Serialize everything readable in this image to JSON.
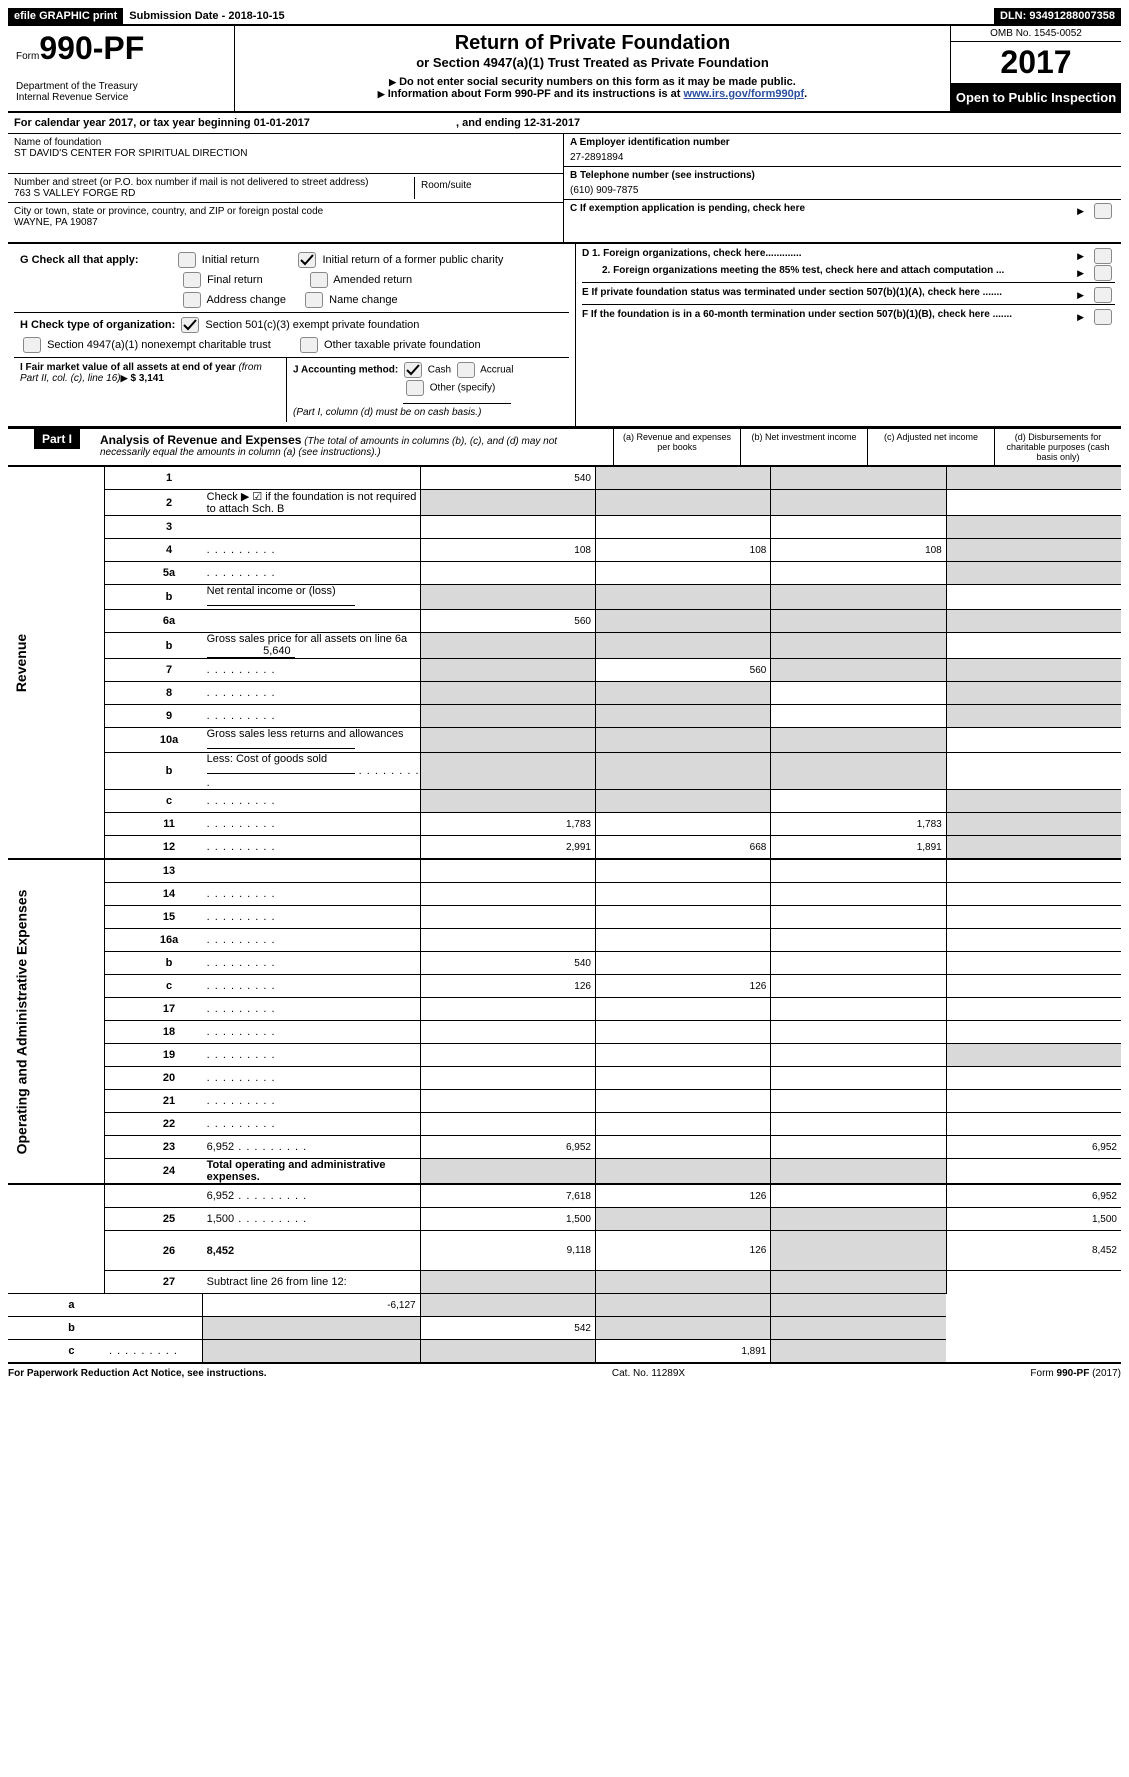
{
  "topbar": {
    "efile": "efile GRAPHIC print",
    "subdate_label": "Submission Date - ",
    "subdate": "2018-10-15",
    "dln_label": "DLN: ",
    "dln": "93491288007358"
  },
  "header": {
    "form_label": "Form",
    "form_number": "990-PF",
    "dept1": "Department of the Treasury",
    "dept2": "Internal Revenue Service",
    "title": "Return of Private Foundation",
    "subtitle": "or Section 4947(a)(1) Trust Treated as Private Foundation",
    "note1": "Do not enter social security numbers on this form as it may be made public.",
    "note2_pre": "Information about Form 990-PF and its instructions is at ",
    "note2_link": "www.irs.gov/form990pf",
    "omb": "OMB No. 1545-0052",
    "year": "2017",
    "openpub": "Open to Public Inspection"
  },
  "calendar": {
    "text": "For calendar year 2017, or tax year beginning 01-01-2017",
    "ending": ", and ending 12-31-2017"
  },
  "info": {
    "name_label": "Name of foundation",
    "name": "ST DAVID'S CENTER FOR SPIRITUAL DIRECTION",
    "addr_label": "Number and street (or P.O. box number if mail is not delivered to street address)",
    "addr": "763 S VALLEY FORGE RD",
    "room_label": "Room/suite",
    "city_label": "City or town, state or province, country, and ZIP or foreign postal code",
    "city": "WAYNE, PA  19087",
    "a_label": "A Employer identification number",
    "a_val": "27-2891894",
    "b_label": "B Telephone number (see instructions)",
    "b_val": "(610) 909-7875",
    "c_label": "C  If exemption application is pending, check here",
    "d1": "D 1. Foreign organizations, check here.............",
    "d2": "2. Foreign organizations meeting the 85% test, check here and attach computation ...",
    "e": "E   If private foundation status was terminated under section 507(b)(1)(A), check here .......",
    "f": "F   If the foundation is in a 60-month termination under section 507(b)(1)(B), check here ......."
  },
  "g": {
    "label": "G Check all that apply:",
    "opts": [
      "Initial return",
      "Initial return of a former public charity",
      "Final return",
      "Amended return",
      "Address change",
      "Name change"
    ]
  },
  "h": {
    "label": "H Check type of organization:",
    "opt1": "Section 501(c)(3) exempt private foundation",
    "opt2": "Section 4947(a)(1) nonexempt charitable trust",
    "opt3": "Other taxable private foundation"
  },
  "i": {
    "label": "I Fair market value of all assets at end of year ",
    "sub": "(from Part II, col. (c), line 16)",
    "val": "$  3,141"
  },
  "j": {
    "label": "J Accounting method:",
    "opts": [
      "Cash",
      "Accrual",
      "Other (specify)"
    ],
    "note": "(Part I, column (d) must be on cash basis.)"
  },
  "part1": {
    "label": "Part I",
    "title": "Analysis of Revenue and Expenses",
    "sub": "(The total of amounts in columns (b), (c), and (d) may not necessarily equal the amounts in column (a) (see instructions).)",
    "cols": {
      "a": "(a)     Revenue and expenses per books",
      "b": "(b)     Net investment income",
      "c": "(c)     Adjusted net income",
      "d": "(d)     Disbursements for charitable purposes (cash basis only)"
    },
    "side_revenue": "Revenue",
    "side_expenses": "Operating and Administrative Expenses"
  },
  "rows": [
    {
      "n": "1",
      "d": "",
      "a": "540",
      "b": "",
      "c": "",
      "shade_b": true,
      "shade_c": true,
      "shade_d": true
    },
    {
      "n": "2",
      "d": "Check ▶ ☑ if the foundation is not required to attach Sch. B",
      "no_vals": true,
      "shade_all": true
    },
    {
      "n": "3",
      "d": "",
      "a": "",
      "b": "",
      "c": "",
      "shade_d": true
    },
    {
      "n": "4",
      "d": "",
      "dots": true,
      "a": "108",
      "b": "108",
      "c": "108",
      "shade_d": true
    },
    {
      "n": "5a",
      "d": "",
      "dots": true,
      "a": "",
      "b": "",
      "c": "",
      "shade_d": true
    },
    {
      "n": "b",
      "d": "Net rental income or (loss)",
      "underline": true,
      "no_vals": true,
      "shade_all": true
    },
    {
      "n": "6a",
      "d": "",
      "a": "560",
      "b": "",
      "c": "",
      "shade_b": true,
      "shade_c": true,
      "shade_d": true
    },
    {
      "n": "b",
      "d": "Gross sales price for all assets on line 6a",
      "inline_val": "5,640",
      "no_vals": true,
      "shade_all": true
    },
    {
      "n": "7",
      "d": "",
      "dots": true,
      "a": "",
      "b": "560",
      "c": "",
      "shade_a": true,
      "shade_c": true,
      "shade_d": true
    },
    {
      "n": "8",
      "d": "",
      "dots": true,
      "a": "",
      "b": "",
      "c": "",
      "shade_a": true,
      "shade_b": true,
      "shade_d": true
    },
    {
      "n": "9",
      "d": "",
      "dots": true,
      "a": "",
      "b": "",
      "c": "",
      "shade_a": true,
      "shade_b": true,
      "shade_d": true
    },
    {
      "n": "10a",
      "d": "Gross sales less returns and allowances",
      "underline": true,
      "no_vals": true,
      "shade_all": true
    },
    {
      "n": "b",
      "d": "Less: Cost of goods sold",
      "dots": true,
      "underline": true,
      "no_vals": true,
      "shade_all": true
    },
    {
      "n": "c",
      "d": "",
      "dots": true,
      "a": "",
      "b": "",
      "c": "",
      "shade_a": true,
      "shade_b": true,
      "shade_d": true
    },
    {
      "n": "11",
      "d": "",
      "dots": true,
      "a": "1,783",
      "b": "",
      "c": "1,783",
      "shade_d": true
    },
    {
      "n": "12",
      "d": "",
      "dots": true,
      "bold": true,
      "a": "2,991",
      "b": "668",
      "c": "1,891",
      "shade_d": true
    },
    {
      "n": "13",
      "d": "",
      "a": "",
      "b": "",
      "c": ""
    },
    {
      "n": "14",
      "d": "",
      "dots": true,
      "a": "",
      "b": "",
      "c": ""
    },
    {
      "n": "15",
      "d": "",
      "dots": true,
      "a": "",
      "b": "",
      "c": ""
    },
    {
      "n": "16a",
      "d": "",
      "dots": true,
      "a": "",
      "b": "",
      "c": ""
    },
    {
      "n": "b",
      "d": "",
      "dots": true,
      "a": "540",
      "b": "",
      "c": ""
    },
    {
      "n": "c",
      "d": "",
      "dots": true,
      "a": "126",
      "b": "126",
      "c": ""
    },
    {
      "n": "17",
      "d": "",
      "dots": true,
      "a": "",
      "b": "",
      "c": ""
    },
    {
      "n": "18",
      "d": "",
      "dots": true,
      "a": "",
      "b": "",
      "c": ""
    },
    {
      "n": "19",
      "d": "",
      "dots": true,
      "a": "",
      "b": "",
      "c": "",
      "shade_d": true
    },
    {
      "n": "20",
      "d": "",
      "dots": true,
      "a": "",
      "b": "",
      "c": ""
    },
    {
      "n": "21",
      "d": "",
      "dots": true,
      "a": "",
      "b": "",
      "c": ""
    },
    {
      "n": "22",
      "d": "",
      "dots": true,
      "a": "",
      "b": "",
      "c": ""
    },
    {
      "n": "23",
      "d": "6,952",
      "dots": true,
      "a": "6,952",
      "b": "",
      "c": ""
    },
    {
      "n": "24",
      "d": "Total operating and administrative expenses.",
      "bold": true,
      "no_vals": true,
      "shade_all": true,
      "noborder_bottom": true
    },
    {
      "n": "",
      "d": "6,952",
      "dots": true,
      "a": "7,618",
      "b": "126",
      "c": ""
    },
    {
      "n": "25",
      "d": "1,500",
      "dots": true,
      "a": "1,500",
      "b": "",
      "c": "",
      "shade_b": true,
      "shade_c": true
    },
    {
      "n": "26",
      "d": "8,452",
      "bold": true,
      "tall": true,
      "a": "9,118",
      "b": "126",
      "c": "",
      "shade_c": true
    },
    {
      "n": "27",
      "d": "Subtract line 26 from line 12:",
      "no_vals": true,
      "shade_all": true
    },
    {
      "n": "a",
      "d": "",
      "bold": true,
      "a": "-6,127",
      "b": "",
      "c": "",
      "shade_b": true,
      "shade_c": true,
      "shade_d": true
    },
    {
      "n": "b",
      "d": "",
      "bold": true,
      "a": "",
      "b": "542",
      "c": "",
      "shade_a": true,
      "shade_c": true,
      "shade_d": true
    },
    {
      "n": "c",
      "d": "",
      "dots": true,
      "bold": true,
      "a": "",
      "b": "",
      "c": "1,891",
      "shade_a": true,
      "shade_b": true,
      "shade_d": true
    }
  ],
  "footer": {
    "left": "For Paperwork Reduction Act Notice, see instructions.",
    "mid": "Cat. No. 11289X",
    "right": "Form 990-PF (2017)"
  }
}
